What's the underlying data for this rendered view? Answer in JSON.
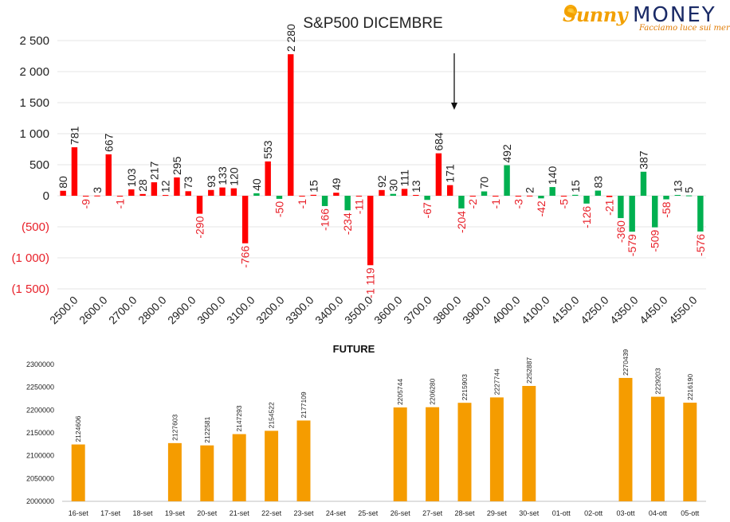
{
  "logo": {
    "brand_left": "Sunny",
    "brand_right": "MONEY",
    "tagline": "Facciamo luce sui mercati"
  },
  "colors": {
    "positive": "#ff0000",
    "negative": "#00b050",
    "future": "#f59c00",
    "negative_label": "#e8212a"
  },
  "chart_data": [
    {
      "type": "bar",
      "title": "S&P500 DICEMBRE",
      "annotation": "arrow-down",
      "ylim": [
        -1500,
        2500
      ],
      "y_ticks": [
        2500,
        2000,
        1500,
        1000,
        500,
        0,
        -500,
        -1000,
        -1500
      ],
      "y_tick_labels": [
        "2 500",
        "2 000",
        "1 500",
        "1 000",
        "500",
        "0",
        "(500)",
        "(1 000)",
        "(1 500)"
      ],
      "x_tick_labels": [
        "2500.0",
        "2600.0",
        "2700.0",
        "2800.0",
        "2900.0",
        "3000.0",
        "3100.0",
        "3200.0",
        "3300.0",
        "3400.0",
        "3500.0",
        "3600.0",
        "3700.0",
        "3800.0",
        "3900.0",
        "4000.0",
        "4100.0",
        "4150.0",
        "4250.0",
        "4350.0",
        "4450.0",
        "4550.0"
      ],
      "series": [
        {
          "values": [
            80,
            781,
            -9,
            3,
            667,
            -1,
            103,
            28,
            217,
            12,
            295,
            73,
            -290,
            93,
            133,
            120,
            -766,
            553,
            2280,
            -1,
            15,
            49,
            -11,
            -1119,
            92,
            30,
            111,
            13,
            684,
            171,
            -2,
            70,
            -1,
            -3,
            2,
            -5,
            15,
            -126,
            83,
            -21,
            -360,
            13,
            5
          ]
        },
        {
          "values": [
            0,
            0,
            0,
            0,
            0,
            0,
            0,
            0,
            0,
            0,
            0,
            0,
            0,
            0,
            0,
            0,
            0,
            40,
            -50,
            0,
            -166,
            0,
            -234,
            0,
            0,
            0,
            0,
            0,
            -67,
            -204,
            0,
            0,
            492,
            -42,
            140,
            0,
            0,
            0,
            0,
            0,
            -579,
            387,
            -509,
            -58,
            0,
            0,
            -576
          ]
        }
      ],
      "bars": [
        {
          "v": 80,
          "c": "pos",
          "l": "80",
          "lp": "up"
        },
        {
          "v": 781,
          "c": "pos",
          "l": "781",
          "lp": "up"
        },
        {
          "v": -9,
          "c": "pos",
          "l": "-9",
          "lp": "down"
        },
        {
          "v": 3,
          "c": "pos",
          "l": "3",
          "lp": "up"
        },
        {
          "v": 667,
          "c": "pos",
          "l": "667",
          "lp": "up"
        },
        {
          "v": -1,
          "c": "pos",
          "l": "-1",
          "lp": "down"
        },
        {
          "v": 103,
          "c": "pos",
          "l": "103",
          "lp": "up"
        },
        {
          "v": 28,
          "c": "pos",
          "l": "28",
          "lp": "up"
        },
        {
          "v": 217,
          "c": "pos",
          "l": "217",
          "lp": "up"
        },
        {
          "v": 12,
          "c": "pos",
          "l": "12",
          "lp": "up"
        },
        {
          "v": 295,
          "c": "pos",
          "l": "295",
          "lp": "up"
        },
        {
          "v": 73,
          "c": "pos",
          "l": "73",
          "lp": "up"
        },
        {
          "v": -290,
          "c": "pos",
          "l": "-290",
          "lp": "down"
        },
        {
          "v": 93,
          "c": "pos",
          "l": "93",
          "lp": "up"
        },
        {
          "v": 133,
          "c": "pos",
          "l": "133",
          "lp": "up"
        },
        {
          "v": 120,
          "c": "pos",
          "l": "120",
          "lp": "up"
        },
        {
          "v": -766,
          "c": "pos",
          "l": "-766",
          "lp": "down"
        },
        {
          "v": 40,
          "c": "neg",
          "l": "40",
          "lp": "up"
        },
        {
          "v": 553,
          "c": "pos",
          "l": "553",
          "lp": "up"
        },
        {
          "v": -50,
          "c": "neg",
          "l": "-50",
          "lp": "down"
        },
        {
          "v": 2280,
          "c": "pos",
          "l": "2 280",
          "lp": "up"
        },
        {
          "v": -1,
          "c": "pos",
          "l": "-1",
          "lp": "down"
        },
        {
          "v": 15,
          "c": "pos",
          "l": "15",
          "lp": "up"
        },
        {
          "v": -166,
          "c": "neg",
          "l": "-166",
          "lp": "down"
        },
        {
          "v": 49,
          "c": "pos",
          "l": "49",
          "lp": "up"
        },
        {
          "v": -234,
          "c": "neg",
          "l": "-234",
          "lp": "down"
        },
        {
          "v": -11,
          "c": "pos",
          "l": "-11",
          "lp": "down"
        },
        {
          "v": -1119,
          "c": "pos",
          "l": "-1 119",
          "lp": "down"
        },
        {
          "v": 92,
          "c": "pos",
          "l": "92",
          "lp": "up"
        },
        {
          "v": 30,
          "c": "neg",
          "l": "30",
          "lp": "up"
        },
        {
          "v": 111,
          "c": "pos",
          "l": "111",
          "lp": "up"
        },
        {
          "v": 13,
          "c": "pos",
          "l": "13",
          "lp": "up"
        },
        {
          "v": -67,
          "c": "neg",
          "l": "-67",
          "lp": "down"
        },
        {
          "v": 684,
          "c": "pos",
          "l": "684",
          "lp": "up"
        },
        {
          "v": 171,
          "c": "pos",
          "l": "171",
          "lp": "up"
        },
        {
          "v": -204,
          "c": "neg",
          "l": "-204",
          "lp": "down"
        },
        {
          "v": -2,
          "c": "pos",
          "l": "-2",
          "lp": "down"
        },
        {
          "v": 70,
          "c": "neg",
          "l": "70",
          "lp": "up"
        },
        {
          "v": -1,
          "c": "pos",
          "l": "-1",
          "lp": "down"
        },
        {
          "v": 492,
          "c": "neg",
          "l": "492",
          "lp": "up"
        },
        {
          "v": -3,
          "c": "pos",
          "l": "-3",
          "lp": "down"
        },
        {
          "v": 2,
          "c": "pos",
          "l": "2",
          "lp": "up"
        },
        {
          "v": -42,
          "c": "neg",
          "l": "-42",
          "lp": "down"
        },
        {
          "v": 140,
          "c": "neg",
          "l": "140",
          "lp": "up"
        },
        {
          "v": -5,
          "c": "pos",
          "l": "-5",
          "lp": "down"
        },
        {
          "v": 15,
          "c": "neg",
          "l": "15",
          "lp": "up"
        },
        {
          "v": -126,
          "c": "neg",
          "l": "-126",
          "lp": "down"
        },
        {
          "v": 83,
          "c": "neg",
          "l": "83",
          "lp": "up"
        },
        {
          "v": -21,
          "c": "pos",
          "l": "-21",
          "lp": "down"
        },
        {
          "v": -360,
          "c": "neg",
          "l": "-360",
          "lp": "down"
        },
        {
          "v": -579,
          "c": "neg",
          "l": "-579",
          "lp": "down"
        },
        {
          "v": 387,
          "c": "neg",
          "l": "387",
          "lp": "up"
        },
        {
          "v": -509,
          "c": "neg",
          "l": "-509",
          "lp": "down"
        },
        {
          "v": -58,
          "c": "neg",
          "l": "-58",
          "lp": "down"
        },
        {
          "v": 13,
          "c": "neg",
          "l": "13",
          "lp": "up"
        },
        {
          "v": 5,
          "c": "neg",
          "l": "5",
          "lp": "up"
        },
        {
          "v": -576,
          "c": "neg",
          "l": "-576",
          "lp": "down"
        }
      ],
      "grid": true
    },
    {
      "type": "bar",
      "title": "FUTURE",
      "ylim": [
        2000000,
        2300000
      ],
      "y_ticks": [
        2000000,
        2050000,
        2100000,
        2150000,
        2200000,
        2250000,
        2300000
      ],
      "categories": [
        "16-set",
        "17-set",
        "18-set",
        "19-set",
        "20-set",
        "21-set",
        "22-set",
        "23-set",
        "24-set",
        "25-set",
        "26-set",
        "27-set",
        "28-set",
        "29-set",
        "30-set",
        "01-ott",
        "02-ott",
        "03-ott",
        "04-ott",
        "05-ott"
      ],
      "values": [
        2124606,
        null,
        null,
        2127603,
        2122581,
        2147293,
        2154522,
        2177109,
        null,
        null,
        2205744,
        2206280,
        2215903,
        2227744,
        2252887,
        null,
        null,
        2270439,
        2229203,
        2216190
      ],
      "grid": false
    }
  ]
}
